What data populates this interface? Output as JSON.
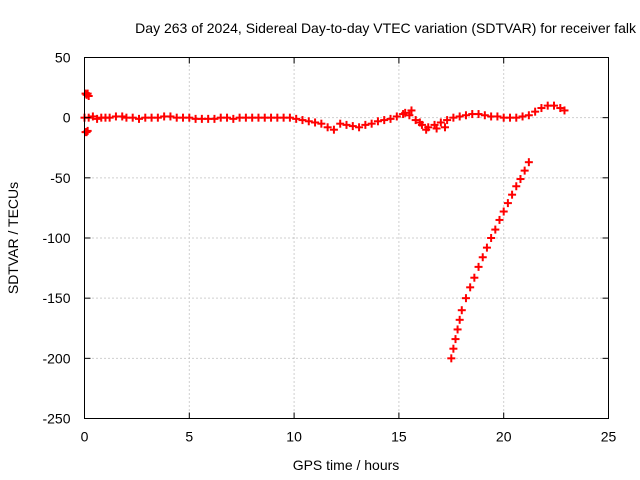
{
  "chart_data": {
    "type": "scatter",
    "title": "Day 263 of 2024, Sidereal Day-to-day VTEC variation (SDTVAR) for receiver falk",
    "xlabel": "GPS time / hours",
    "ylabel": "SDTVAR / TECUs",
    "xlim": [
      0,
      25
    ],
    "ylim": [
      -250,
      50
    ],
    "xticks": [
      0,
      5,
      10,
      15,
      20,
      25
    ],
    "yticks": [
      -250,
      -200,
      -150,
      -100,
      -50,
      0,
      50
    ],
    "grid": true,
    "marker": "plus",
    "series_color": "#ff0000",
    "series": [
      {
        "points": [
          [
            0.05,
            20
          ],
          [
            0.1,
            19
          ],
          [
            0.15,
            20
          ],
          [
            0.2,
            18
          ],
          [
            0.05,
            -12
          ],
          [
            0.1,
            -12
          ],
          [
            0.15,
            -11
          ],
          [
            0.0,
            0
          ],
          [
            0.2,
            0
          ],
          [
            0.4,
            1
          ],
          [
            0.6,
            -1
          ],
          [
            0.8,
            0
          ],
          [
            1.0,
            0
          ],
          [
            1.2,
            0
          ],
          [
            1.5,
            1
          ],
          [
            1.8,
            1
          ],
          [
            2.0,
            0
          ],
          [
            2.3,
            0
          ],
          [
            2.6,
            -1
          ],
          [
            2.9,
            0
          ],
          [
            3.2,
            0
          ],
          [
            3.5,
            0
          ],
          [
            3.8,
            1
          ],
          [
            4.1,
            1
          ],
          [
            4.4,
            0
          ],
          [
            4.7,
            0
          ],
          [
            5.0,
            0
          ],
          [
            5.3,
            -1
          ],
          [
            5.6,
            -1
          ],
          [
            5.9,
            -1
          ],
          [
            6.2,
            -1
          ],
          [
            6.5,
            0
          ],
          [
            6.8,
            0
          ],
          [
            7.1,
            -1
          ],
          [
            7.4,
            0
          ],
          [
            7.7,
            0
          ],
          [
            8.0,
            0
          ],
          [
            8.3,
            0
          ],
          [
            8.6,
            0
          ],
          [
            8.9,
            0
          ],
          [
            9.2,
            0
          ],
          [
            9.5,
            0
          ],
          [
            9.8,
            0
          ],
          [
            10.1,
            -1
          ],
          [
            10.4,
            -2
          ],
          [
            10.7,
            -3
          ],
          [
            11.0,
            -4
          ],
          [
            11.3,
            -5
          ],
          [
            11.6,
            -8
          ],
          [
            11.9,
            -10
          ],
          [
            12.2,
            -5
          ],
          [
            12.5,
            -6
          ],
          [
            12.8,
            -7
          ],
          [
            13.1,
            -8
          ],
          [
            13.4,
            -6
          ],
          [
            13.7,
            -5
          ],
          [
            14.0,
            -3
          ],
          [
            14.3,
            -2
          ],
          [
            14.6,
            -1
          ],
          [
            14.9,
            1
          ],
          [
            15.2,
            3
          ],
          [
            15.5,
            2
          ],
          [
            15.8,
            -2
          ],
          [
            16.1,
            -6
          ],
          [
            16.4,
            -8
          ],
          [
            16.7,
            -6
          ],
          [
            17.0,
            -4
          ],
          [
            17.3,
            -2
          ],
          [
            17.6,
            0
          ],
          [
            17.9,
            1
          ],
          [
            18.2,
            2
          ],
          [
            18.5,
            3
          ],
          [
            18.8,
            3
          ],
          [
            19.1,
            2
          ],
          [
            19.4,
            1
          ],
          [
            19.7,
            1
          ],
          [
            20.0,
            0
          ],
          [
            20.3,
            0
          ],
          [
            20.6,
            0
          ],
          [
            20.9,
            1
          ],
          [
            21.2,
            2
          ],
          [
            21.5,
            5
          ],
          [
            21.8,
            8
          ],
          [
            22.1,
            10
          ],
          [
            22.4,
            10
          ],
          [
            22.7,
            8
          ],
          [
            22.9,
            6
          ],
          [
            15.3,
            4
          ],
          [
            15.6,
            6
          ],
          [
            16.0,
            -4
          ],
          [
            16.3,
            -10
          ],
          [
            16.8,
            -9
          ],
          [
            17.2,
            -8
          ],
          [
            17.5,
            -200
          ],
          [
            17.6,
            -192
          ],
          [
            17.7,
            -184
          ],
          [
            17.8,
            -176
          ],
          [
            17.9,
            -168
          ],
          [
            18.0,
            -160
          ],
          [
            18.2,
            -150
          ],
          [
            18.4,
            -141
          ],
          [
            18.6,
            -133
          ],
          [
            18.8,
            -124
          ],
          [
            19.0,
            -116
          ],
          [
            19.2,
            -108
          ],
          [
            19.4,
            -100
          ],
          [
            19.6,
            -93
          ],
          [
            19.8,
            -85
          ],
          [
            20.0,
            -78
          ],
          [
            20.2,
            -71
          ],
          [
            20.4,
            -64
          ],
          [
            20.6,
            -57
          ],
          [
            20.8,
            -51
          ],
          [
            21.0,
            -44
          ],
          [
            21.2,
            -37
          ]
        ]
      }
    ]
  }
}
